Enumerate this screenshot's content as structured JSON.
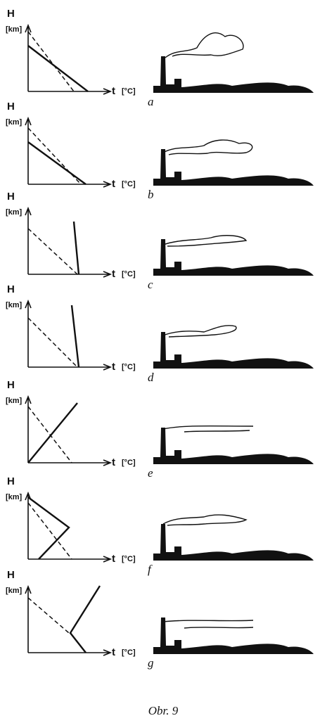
{
  "axes": {
    "y": "H",
    "y_unit": "[km]",
    "x": "t",
    "x_unit": "[°C]"
  },
  "panels": [
    {
      "label": "a"
    },
    {
      "label": "b"
    },
    {
      "label": "c"
    },
    {
      "label": "d"
    },
    {
      "label": "e"
    },
    {
      "label": "f"
    },
    {
      "label": "g"
    }
  ],
  "caption": "Obr. 9"
}
